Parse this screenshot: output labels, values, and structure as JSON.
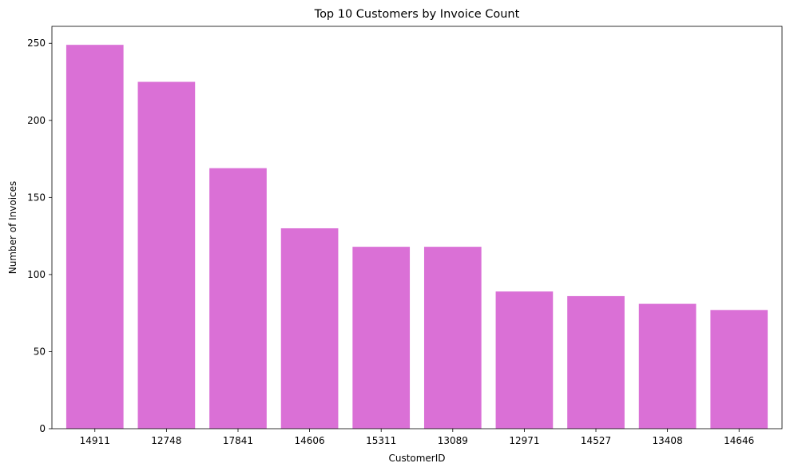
{
  "chart_data": {
    "type": "bar",
    "title": "Top 10 Customers by Invoice Count",
    "xlabel": "CustomerID",
    "ylabel": "Number of Invoices",
    "categories": [
      "14911",
      "12748",
      "17841",
      "14606",
      "15311",
      "13089",
      "12971",
      "14527",
      "13408",
      "14646"
    ],
    "values": [
      249,
      225,
      169,
      130,
      118,
      118,
      89,
      86,
      81,
      77
    ],
    "ylim": [
      0,
      261
    ],
    "yticks": [
      0,
      50,
      100,
      150,
      200,
      250
    ],
    "grid": false,
    "legend": "none",
    "bar_color": "#da70d6"
  }
}
